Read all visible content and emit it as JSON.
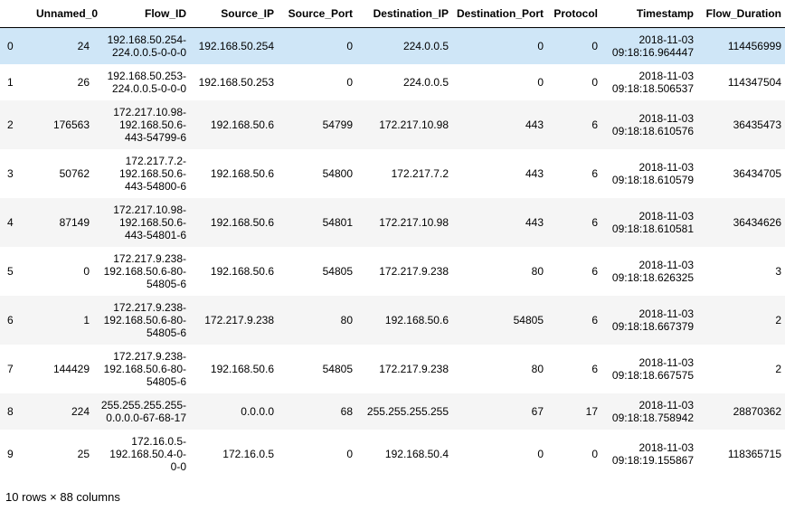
{
  "table": {
    "columns": [
      "",
      "Unnamed_0",
      "Flow_ID",
      "Source_IP",
      "Source_Port",
      "Destination_IP",
      "Destination_Port",
      "Protocol",
      "Timestamp",
      "Flow_Duration"
    ],
    "rows": [
      {
        "index": "0",
        "unnamed_0": "24",
        "flow_id": [
          "192.168.50.254-",
          "224.0.0.5-0-0-0"
        ],
        "source_ip": "192.168.50.254",
        "source_port": "0",
        "destination_ip": "224.0.0.5",
        "destination_port": "0",
        "protocol": "0",
        "timestamp": [
          "2018-11-03",
          "09:18:16.964447"
        ],
        "flow_duration": "114456999"
      },
      {
        "index": "1",
        "unnamed_0": "26",
        "flow_id": [
          "192.168.50.253-",
          "224.0.0.5-0-0-0"
        ],
        "source_ip": "192.168.50.253",
        "source_port": "0",
        "destination_ip": "224.0.0.5",
        "destination_port": "0",
        "protocol": "0",
        "timestamp": [
          "2018-11-03",
          "09:18:18.506537"
        ],
        "flow_duration": "114347504"
      },
      {
        "index": "2",
        "unnamed_0": "176563",
        "flow_id": [
          "172.217.10.98-",
          "192.168.50.6-",
          "443-54799-6"
        ],
        "source_ip": "192.168.50.6",
        "source_port": "54799",
        "destination_ip": "172.217.10.98",
        "destination_port": "443",
        "protocol": "6",
        "timestamp": [
          "2018-11-03",
          "09:18:18.610576"
        ],
        "flow_duration": "36435473"
      },
      {
        "index": "3",
        "unnamed_0": "50762",
        "flow_id": [
          "172.217.7.2-",
          "192.168.50.6-",
          "443-54800-6"
        ],
        "source_ip": "192.168.50.6",
        "source_port": "54800",
        "destination_ip": "172.217.7.2",
        "destination_port": "443",
        "protocol": "6",
        "timestamp": [
          "2018-11-03",
          "09:18:18.610579"
        ],
        "flow_duration": "36434705"
      },
      {
        "index": "4",
        "unnamed_0": "87149",
        "flow_id": [
          "172.217.10.98-",
          "192.168.50.6-",
          "443-54801-6"
        ],
        "source_ip": "192.168.50.6",
        "source_port": "54801",
        "destination_ip": "172.217.10.98",
        "destination_port": "443",
        "protocol": "6",
        "timestamp": [
          "2018-11-03",
          "09:18:18.610581"
        ],
        "flow_duration": "36434626"
      },
      {
        "index": "5",
        "unnamed_0": "0",
        "flow_id": [
          "172.217.9.238-",
          "192.168.50.6-80-",
          "54805-6"
        ],
        "source_ip": "192.168.50.6",
        "source_port": "54805",
        "destination_ip": "172.217.9.238",
        "destination_port": "80",
        "protocol": "6",
        "timestamp": [
          "2018-11-03",
          "09:18:18.626325"
        ],
        "flow_duration": "3"
      },
      {
        "index": "6",
        "unnamed_0": "1",
        "flow_id": [
          "172.217.9.238-",
          "192.168.50.6-80-",
          "54805-6"
        ],
        "source_ip": "172.217.9.238",
        "source_port": "80",
        "destination_ip": "192.168.50.6",
        "destination_port": "54805",
        "protocol": "6",
        "timestamp": [
          "2018-11-03",
          "09:18:18.667379"
        ],
        "flow_duration": "2"
      },
      {
        "index": "7",
        "unnamed_0": "144429",
        "flow_id": [
          "172.217.9.238-",
          "192.168.50.6-80-",
          "54805-6"
        ],
        "source_ip": "192.168.50.6",
        "source_port": "54805",
        "destination_ip": "172.217.9.238",
        "destination_port": "80",
        "protocol": "6",
        "timestamp": [
          "2018-11-03",
          "09:18:18.667575"
        ],
        "flow_duration": "2"
      },
      {
        "index": "8",
        "unnamed_0": "224",
        "flow_id": [
          "255.255.255.255-",
          "0.0.0.0-67-68-17"
        ],
        "source_ip": "0.0.0.0",
        "source_port": "68",
        "destination_ip": "255.255.255.255",
        "destination_port": "67",
        "protocol": "17",
        "timestamp": [
          "2018-11-03",
          "09:18:18.758942"
        ],
        "flow_duration": "28870362"
      },
      {
        "index": "9",
        "unnamed_0": "25",
        "flow_id": [
          "172.16.0.5-",
          "192.168.50.4-0-",
          "0-0"
        ],
        "source_ip": "172.16.0.5",
        "source_port": "0",
        "destination_ip": "192.168.50.4",
        "destination_port": "0",
        "protocol": "0",
        "timestamp": [
          "2018-11-03",
          "09:18:19.155867"
        ],
        "flow_duration": "118365715"
      }
    ],
    "highlighted_row": "0",
    "colors": {
      "highlight": "#cfe6f7",
      "stripe": "#f5f5f5",
      "header_rule": "#000000"
    }
  },
  "footer": {
    "text": "10 rows × 88 columns"
  }
}
